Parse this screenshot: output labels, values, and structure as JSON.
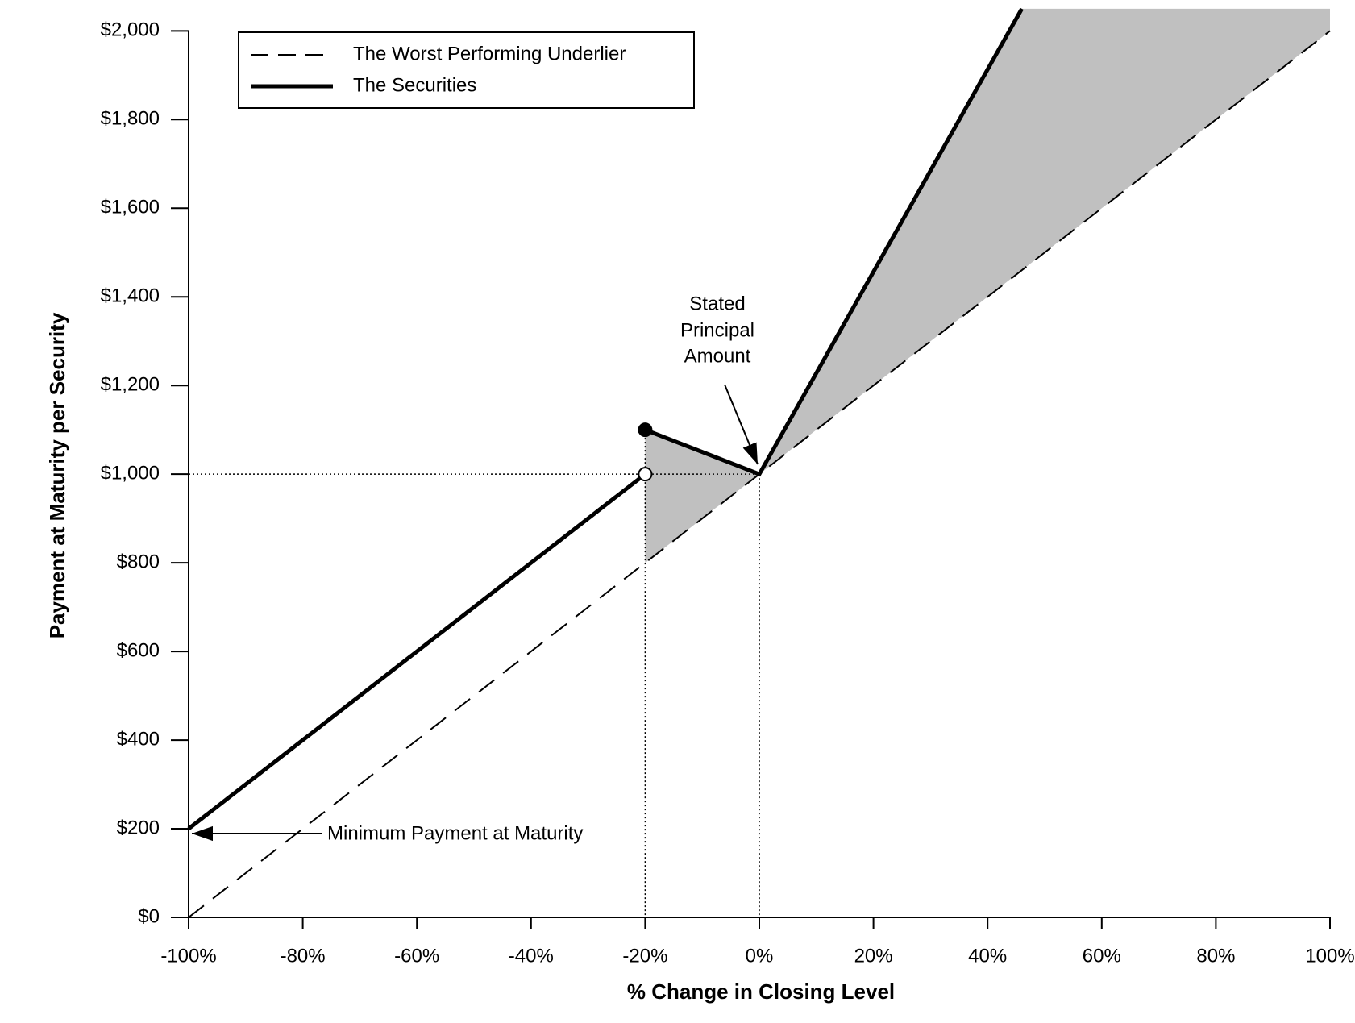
{
  "chart_data": {
    "type": "line",
    "xlabel": "% Change in Closing Level",
    "ylabel": "Payment at Maturity per Security",
    "xlim": [
      -100,
      100
    ],
    "ylim": [
      0,
      2057
    ],
    "xticks": [
      {
        "value": -100,
        "label": "-100%"
      },
      {
        "value": -80,
        "label": "-80%"
      },
      {
        "value": -60,
        "label": "-60%"
      },
      {
        "value": -40,
        "label": "-40%"
      },
      {
        "value": -20,
        "label": "-20%"
      },
      {
        "value": 0,
        "label": "0%"
      },
      {
        "value": 20,
        "label": "20%"
      },
      {
        "value": 40,
        "label": "40%"
      },
      {
        "value": 60,
        "label": "60%"
      },
      {
        "value": 80,
        "label": "80%"
      },
      {
        "value": 100,
        "label": "100%"
      }
    ],
    "yticks": [
      {
        "value": 0,
        "label": "$0"
      },
      {
        "value": 200,
        "label": "$200"
      },
      {
        "value": 400,
        "label": "$400"
      },
      {
        "value": 600,
        "label": "$600"
      },
      {
        "value": 800,
        "label": "$800"
      },
      {
        "value": 1000,
        "label": "$1,000"
      },
      {
        "value": 1200,
        "label": "$1,200"
      },
      {
        "value": 1400,
        "label": "$1,400"
      },
      {
        "value": 1600,
        "label": "$1,600"
      },
      {
        "value": 1800,
        "label": "$1,800"
      },
      {
        "value": 2000,
        "label": "$2,000"
      }
    ],
    "shade_color": "#c0c0c0",
    "series": [
      {
        "name": "The Worst Performing Underlier",
        "color": "#000000",
        "style": "dashed",
        "x": [
          -100,
          100
        ],
        "values": [
          0,
          2000
        ]
      },
      {
        "name": "The Securities",
        "color": "#000000",
        "style": "solid",
        "x": [
          -100,
          -20,
          -20,
          -20,
          0,
          46
        ],
        "values": [
          200,
          1000,
          null,
          1100,
          1000,
          2050
        ]
      }
    ],
    "annotations": [
      {
        "lines": [
          "Stated",
          "Principal",
          "Amount"
        ]
      },
      {
        "lines": [
          "Minimum Payment at Maturity"
        ]
      }
    ]
  }
}
